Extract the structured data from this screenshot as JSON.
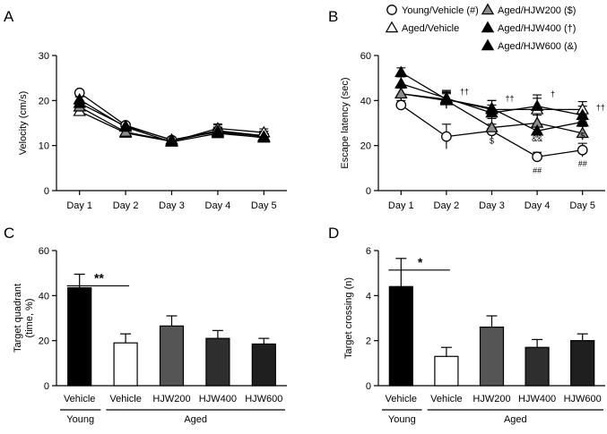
{
  "chart_data": [
    {
      "panel": "A",
      "type": "line",
      "ylabel": "Velocity (cm/s)",
      "categories": [
        "Day 1",
        "Day 2",
        "Day 3",
        "Day 4",
        "Day 5"
      ],
      "ylim": [
        0,
        30
      ],
      "yticks": [
        "0",
        "10",
        "20",
        "30"
      ],
      "series": [
        {
          "name": "Young/Vehicle (#)",
          "values": [
            21.7,
            14.5,
            11.2,
            13.3,
            12.2
          ],
          "err": [
            0.5,
            0.6,
            0.5,
            1.3,
            1.0
          ],
          "marker": "circle-open"
        },
        {
          "name": "Aged/Vehicle",
          "values": [
            17.6,
            12.8,
            10.9,
            13.8,
            12.9
          ],
          "err": [
            0.6,
            0.5,
            0.5,
            1.0,
            0.8
          ],
          "marker": "triangle-open"
        },
        {
          "name": "Aged/HJW200 ($)",
          "values": [
            18.6,
            13.0,
            11.0,
            13.2,
            12.0
          ],
          "err": [
            0.5,
            0.5,
            0.5,
            0.9,
            0.7
          ],
          "marker": "triangle-gray"
        },
        {
          "name": "Aged/HJW400 (†)",
          "values": [
            19.4,
            14.3,
            11.3,
            13.0,
            11.7
          ],
          "err": [
            0.5,
            0.6,
            0.6,
            1.0,
            0.7
          ],
          "marker": "triangle-black"
        },
        {
          "name": "Aged/HJW600 (&)",
          "values": [
            20.2,
            14.1,
            10.8,
            12.7,
            11.8
          ],
          "err": [
            0.6,
            0.5,
            0.5,
            0.9,
            0.7
          ],
          "marker": "triangle-black"
        }
      ]
    },
    {
      "panel": "B",
      "type": "line",
      "ylabel": "Escape latency (sec)",
      "categories": [
        "Day 1",
        "Day 2",
        "Day 3",
        "Day 4",
        "Day 5"
      ],
      "ylim": [
        0,
        60
      ],
      "yticks": [
        "0",
        "20",
        "40",
        "60"
      ],
      "legend": [
        {
          "label": "Young/Vehicle (#)",
          "marker": "circle-open"
        },
        {
          "label": "Aged/HJW200 ($)",
          "marker": "triangle-gray"
        },
        {
          "label": "Aged/Vehicle",
          "marker": "triangle-open"
        },
        {
          "label": "Aged/HJW400 (†)",
          "marker": "triangle-black"
        },
        {
          "label": "Aged/HJW600 (&)",
          "marker": "triangle-black"
        }
      ],
      "series": [
        {
          "name": "Young/Vehicle (#)",
          "values": [
            38.0,
            24.0,
            26.5,
            15.0,
            18.0
          ],
          "err": [
            2.0,
            5.5,
            3.0,
            2.0,
            3.0
          ],
          "marker": "circle-open"
        },
        {
          "name": "Aged/Vehicle",
          "values": [
            43.0,
            40.5,
            36.0,
            36.0,
            36.0
          ],
          "err": [
            3.0,
            4.0,
            4.0,
            5.0,
            3.5
          ],
          "marker": "triangle-open"
        },
        {
          "name": "Aged/HJW200 ($)",
          "values": [
            43.0,
            40.0,
            28.0,
            30.0,
            25.5
          ],
          "err": [
            2.5,
            3.5,
            4.0,
            3.5,
            3.0
          ],
          "marker": "triangle-gray"
        },
        {
          "name": "Aged/HJW400 (†)",
          "values": [
            47.5,
            41.0,
            34.5,
            37.5,
            33.5
          ],
          "err": [
            3.0,
            3.0,
            3.5,
            5.0,
            4.0
          ],
          "marker": "triangle-black"
        },
        {
          "name": "Aged/HJW600 (&)",
          "values": [
            52.5,
            40.5,
            36.5,
            26.5,
            30.5
          ],
          "err": [
            2.0,
            2.5,
            3.5,
            3.0,
            3.0
          ],
          "marker": "triangle-black"
        }
      ],
      "annotations": [
        {
          "text": "††",
          "day": 2,
          "value": 44
        },
        {
          "text": "††",
          "day": 3,
          "value": 41
        },
        {
          "text": "$",
          "day": 3,
          "value": 22
        },
        {
          "text": "†",
          "day": 4,
          "value": 43
        },
        {
          "text": "&&",
          "day": 4,
          "value": 23
        },
        {
          "text": "##",
          "day": 4,
          "value": 9
        },
        {
          "text": "††",
          "day": 5,
          "value": 37
        },
        {
          "text": "&&",
          "day": 5,
          "value": 30.5
        },
        {
          "text": "$",
          "day": 5,
          "value": 24.5
        },
        {
          "text": "##",
          "day": 5,
          "value": 12
        }
      ]
    },
    {
      "panel": "C",
      "type": "bar",
      "ylabel": "Target quadrant (time, %)",
      "ylabel_lines": [
        "Target quadrant",
        "(time, %)"
      ],
      "categories": [
        "Vehicle",
        "Vehicle",
        "HJW200",
        "HJW400",
        "HJW600"
      ],
      "values": [
        43.5,
        19.0,
        26.5,
        21.0,
        18.5
      ],
      "err": [
        6.0,
        4.0,
        4.5,
        3.5,
        2.5
      ],
      "colors": [
        "#000000",
        "#ffffff",
        "#555555",
        "#2e2e2e",
        "#1f1f1f"
      ],
      "ylim": [
        0,
        60
      ],
      "yticks": [
        "0",
        "20",
        "40",
        "60"
      ],
      "significance": "**",
      "groups": [
        {
          "label": "Young",
          "span": [
            0,
            0
          ]
        },
        {
          "label": "Aged",
          "span": [
            1,
            4
          ]
        }
      ]
    },
    {
      "panel": "D",
      "type": "bar",
      "ylabel": "Target crossing (n)",
      "categories": [
        "Vehicle",
        "Vehicle",
        "HJW200",
        "HJW400",
        "HJW600"
      ],
      "values": [
        4.4,
        1.3,
        2.6,
        1.7,
        2.0
      ],
      "err": [
        1.25,
        0.4,
        0.5,
        0.35,
        0.3
      ],
      "colors": [
        "#000000",
        "#ffffff",
        "#555555",
        "#2e2e2e",
        "#1f1f1f"
      ],
      "ylim": [
        0,
        6
      ],
      "yticks": [
        "0",
        "2",
        "4",
        "6"
      ],
      "significance": "*",
      "groups": [
        {
          "label": "Young",
          "span": [
            0,
            0
          ]
        },
        {
          "label": "Aged",
          "span": [
            1,
            4
          ]
        }
      ]
    }
  ]
}
